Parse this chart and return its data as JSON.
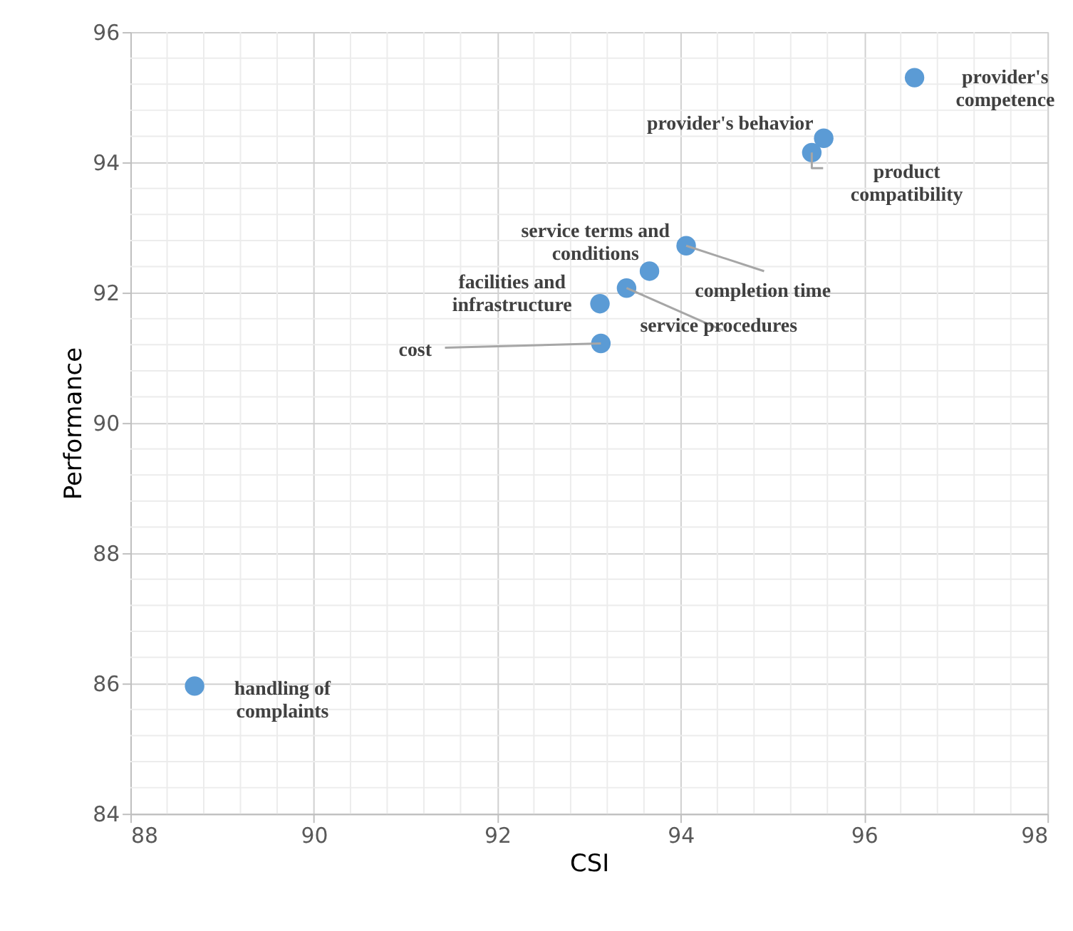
{
  "chart_data": {
    "type": "scatter",
    "xlabel": "CSI",
    "ylabel": "Performance",
    "x": [
      96.55,
      95.56,
      95.43,
      94.06,
      93.66,
      93.41,
      93.12,
      93.13,
      88.7
    ],
    "series": [
      {
        "color": "#5b9bd5",
        "values": [
          95.3,
          94.37,
          94.15,
          92.72,
          92.33,
          92.07,
          91.83,
          91.22,
          85.96
        ]
      }
    ],
    "xlim": [
      88,
      98
    ],
    "xticks": [
      88,
      90,
      92,
      94,
      96,
      98
    ],
    "ylim": [
      84,
      96
    ],
    "yticks": [
      84,
      86,
      88,
      90,
      92,
      94,
      96
    ],
    "grid": true,
    "marker": "circle",
    "annotations": [
      {
        "text": "provider's\ncompetence",
        "x": 96.55,
        "y": 95.3
      },
      {
        "text": "provider's behavior",
        "x": 95.56,
        "y": 94.37
      },
      {
        "text": "product\ncompatibility",
        "x": 95.43,
        "y": 94.15
      },
      {
        "text": "service terms and\nconditions",
        "x": 94.06,
        "y": 92.72
      },
      {
        "text": "completion time",
        "x": 93.66,
        "y": 92.33
      },
      {
        "text": "service procedures",
        "x": 93.41,
        "y": 92.07
      },
      {
        "text": "facilities and\ninfrastructure",
        "x": 93.12,
        "y": 91.83
      },
      {
        "text": "cost",
        "x": 93.13,
        "y": 91.22
      },
      {
        "text": "handling of\ncomplaints",
        "x": 88.7,
        "y": 85.96
      }
    ]
  }
}
